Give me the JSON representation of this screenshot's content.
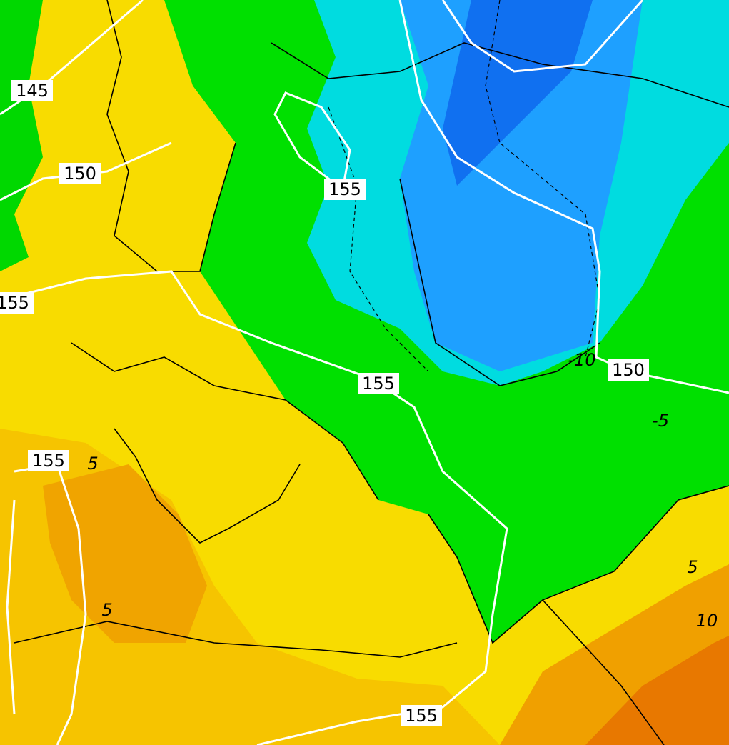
{
  "isoline_labels": [
    "145",
    "150",
    "155",
    "155",
    "155",
    "150",
    "155",
    "155"
  ],
  "temperature_labels": [
    "5",
    "5",
    "-5",
    "5",
    "10",
    "-10"
  ]
}
